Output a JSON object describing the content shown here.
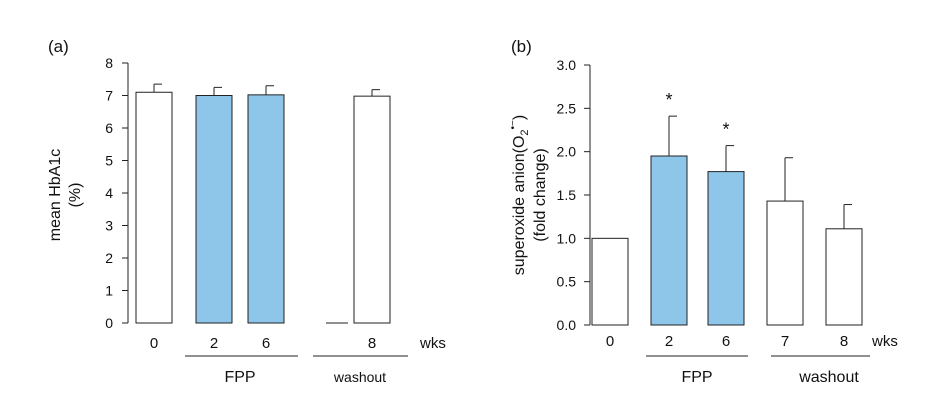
{
  "chart_data": [
    {
      "type": "bar",
      "panel_label": "(a)",
      "title": "",
      "ylabel_line1": "mean HbA1c",
      "ylabel_line2": "(%)",
      "ylim": [
        0,
        8
      ],
      "yticks": [
        "0",
        "1",
        "2",
        "3",
        "4",
        "5",
        "6",
        "7",
        "8"
      ],
      "unit_label": "wks",
      "categories": [
        "0",
        "2",
        "6",
        "",
        "8"
      ],
      "values": [
        7.1,
        7.0,
        7.02,
        null,
        6.98
      ],
      "errors": [
        0.25,
        0.25,
        0.28,
        null,
        0.2
      ],
      "fills": [
        "white",
        "blue",
        "blue",
        "none",
        "white"
      ],
      "significant": [
        false,
        false,
        false,
        false,
        false
      ],
      "groups": [
        {
          "label": "FPP",
          "from": 1,
          "to": 2,
          "style": "large"
        },
        {
          "label": "washout",
          "from": 3,
          "to": 4,
          "style": "small"
        }
      ]
    },
    {
      "type": "bar",
      "panel_label": "(b)",
      "title": "",
      "ylabel_line1_prefix": "superoxide anion(O",
      "ylabel_line1_sub": "2",
      "ylabel_line1_sup": "•−",
      "ylabel_line1_suffix": ")",
      "ylabel_line2": "(fold change)",
      "ylim": [
        0,
        3.0
      ],
      "yticks": [
        "0.0",
        "0.5",
        "1.0",
        "1.5",
        "2.0",
        "2.5",
        "3.0"
      ],
      "unit_label": "wks",
      "categories": [
        "0",
        "2",
        "6",
        "7",
        "8"
      ],
      "values": [
        1.0,
        1.95,
        1.77,
        1.43,
        1.11
      ],
      "errors": [
        0.0,
        0.46,
        0.3,
        0.5,
        0.28
      ],
      "fills": [
        "white",
        "blue",
        "blue",
        "white",
        "white"
      ],
      "significant": [
        false,
        true,
        true,
        false,
        false
      ],
      "significance_mark": "*",
      "groups": [
        {
          "label": "FPP",
          "from": 1,
          "to": 2,
          "style": "large"
        },
        {
          "label": "washout",
          "from": 3,
          "to": 4,
          "style": "large"
        }
      ]
    }
  ],
  "colors": {
    "blue_fill": "#8ec6ea",
    "white_fill": "#ffffff",
    "stroke": "#222222"
  }
}
